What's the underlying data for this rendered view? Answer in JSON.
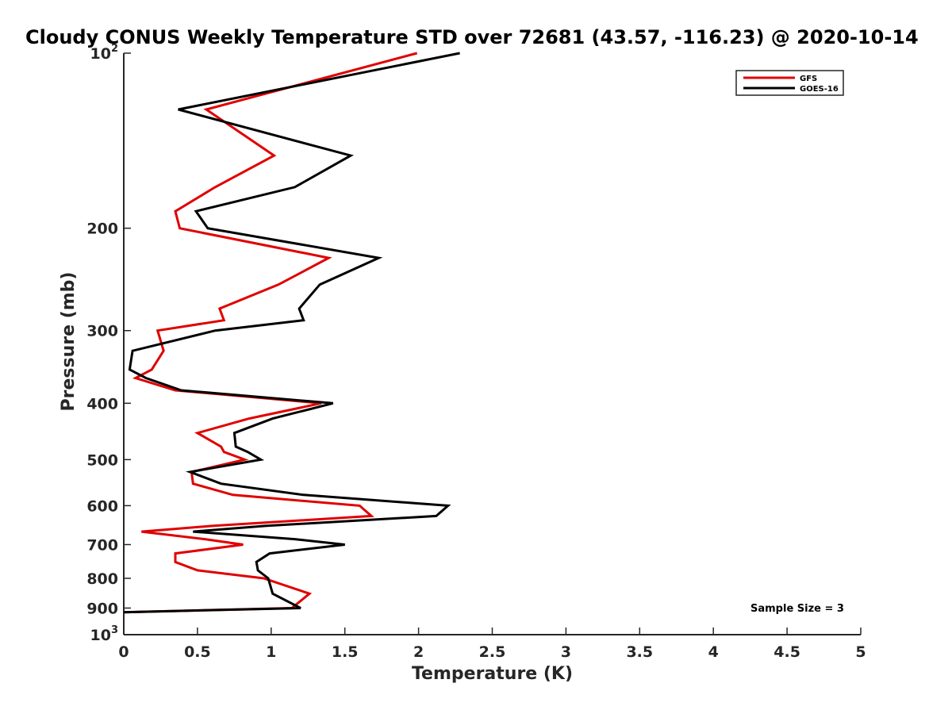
{
  "chart_data": {
    "type": "line",
    "title": "Cloudy CONUS Weekly Temperature STD over 72681 (43.57, -116.23) @ 2020-10-14",
    "xlabel": "Temperature (K)",
    "ylabel": "Pressure (mb)",
    "xlim": [
      0,
      5
    ],
    "ylim": [
      100,
      1000
    ],
    "y_scale": "log",
    "y_reversed": true,
    "grid": false,
    "legend_position": "top-right",
    "x_ticks": [
      {
        "value": 0,
        "label": "0"
      },
      {
        "value": 0.5,
        "label": "0.5"
      },
      {
        "value": 1,
        "label": "1"
      },
      {
        "value": 1.5,
        "label": "1.5"
      },
      {
        "value": 2,
        "label": "2"
      },
      {
        "value": 2.5,
        "label": "2.5"
      },
      {
        "value": 3,
        "label": "3"
      },
      {
        "value": 3.5,
        "label": "3.5"
      },
      {
        "value": 4,
        "label": "4"
      },
      {
        "value": 4.5,
        "label": "4.5"
      },
      {
        "value": 5,
        "label": "5"
      }
    ],
    "y_ticks": [
      {
        "value": 100,
        "base": "10",
        "exp": "2"
      },
      {
        "value": 200,
        "label": "200"
      },
      {
        "value": 300,
        "label": "300"
      },
      {
        "value": 400,
        "label": "400"
      },
      {
        "value": 500,
        "label": "500"
      },
      {
        "value": 600,
        "label": "600"
      },
      {
        "value": 700,
        "label": "700"
      },
      {
        "value": 800,
        "label": "800"
      },
      {
        "value": 900,
        "label": "900"
      },
      {
        "value": 1000,
        "base": "10",
        "exp": "3"
      }
    ],
    "series": [
      {
        "name": "GFS",
        "color": "#e00000",
        "points": [
          [
            1.99,
            100
          ],
          [
            0.56,
            125
          ],
          [
            1.02,
            150
          ],
          [
            0.62,
            170
          ],
          [
            0.35,
            187
          ],
          [
            0.38,
            200
          ],
          [
            1.39,
            225
          ],
          [
            1.05,
            250
          ],
          [
            0.65,
            275
          ],
          [
            0.68,
            288
          ],
          [
            0.23,
            300
          ],
          [
            0.27,
            325
          ],
          [
            0.19,
            350
          ],
          [
            0.08,
            362
          ],
          [
            0.35,
            380
          ],
          [
            1.34,
            400
          ],
          [
            0.85,
            425
          ],
          [
            0.5,
            450
          ],
          [
            0.66,
            475
          ],
          [
            0.68,
            485
          ],
          [
            0.82,
            500
          ],
          [
            0.46,
            525
          ],
          [
            0.47,
            550
          ],
          [
            0.74,
            575
          ],
          [
            1.6,
            600
          ],
          [
            1.68,
            625
          ],
          [
            0.6,
            650
          ],
          [
            0.12,
            665
          ],
          [
            0.55,
            685
          ],
          [
            0.81,
            700
          ],
          [
            0.35,
            725
          ],
          [
            0.35,
            750
          ],
          [
            0.5,
            775
          ],
          [
            0.95,
            800
          ],
          [
            1.26,
            850
          ],
          [
            1.14,
            900
          ],
          [
            0.0,
            915
          ]
        ]
      },
      {
        "name": "GOES-16",
        "color": "#000000",
        "points": [
          [
            2.28,
            100
          ],
          [
            0.37,
            125
          ],
          [
            1.54,
            150
          ],
          [
            1.16,
            170
          ],
          [
            0.49,
            187
          ],
          [
            0.57,
            200
          ],
          [
            1.73,
            225
          ],
          [
            1.33,
            250
          ],
          [
            1.19,
            275
          ],
          [
            1.22,
            288
          ],
          [
            0.62,
            300
          ],
          [
            0.06,
            325
          ],
          [
            0.04,
            350
          ],
          [
            0.15,
            362
          ],
          [
            0.39,
            380
          ],
          [
            1.42,
            400
          ],
          [
            1.01,
            425
          ],
          [
            0.75,
            450
          ],
          [
            0.76,
            475
          ],
          [
            0.84,
            485
          ],
          [
            0.93,
            500
          ],
          [
            0.45,
            525
          ],
          [
            0.66,
            550
          ],
          [
            1.22,
            575
          ],
          [
            2.2,
            600
          ],
          [
            2.12,
            625
          ],
          [
            0.96,
            650
          ],
          [
            0.47,
            665
          ],
          [
            1.16,
            685
          ],
          [
            1.5,
            700
          ],
          [
            0.99,
            725
          ],
          [
            0.9,
            750
          ],
          [
            0.91,
            775
          ],
          [
            0.98,
            800
          ],
          [
            1.01,
            850
          ],
          [
            1.2,
            900
          ],
          [
            0.0,
            915
          ]
        ]
      }
    ],
    "annotations": [
      "Sample Size = 3"
    ]
  }
}
